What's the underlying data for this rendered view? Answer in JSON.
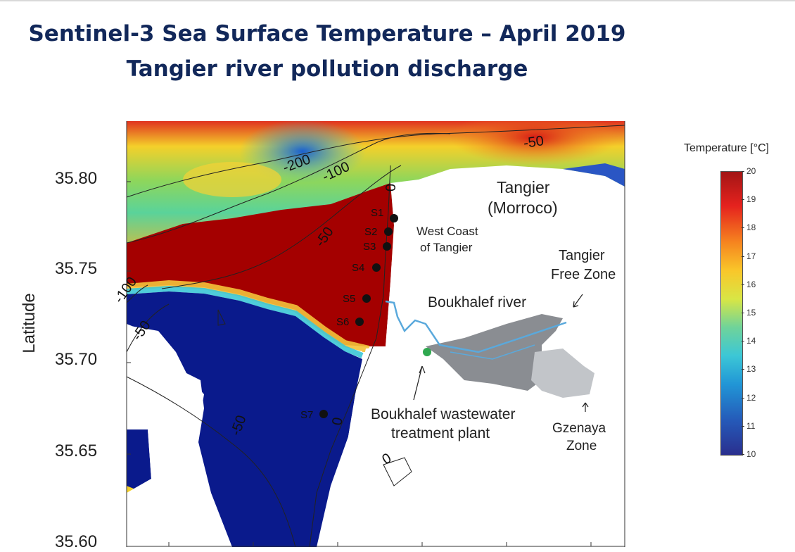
{
  "title": {
    "line1": "Sentinel-3 Sea Surface Temperature – April 2019",
    "line2": "Tangier river pollution discharge"
  },
  "axis": {
    "y_title": "Latitude",
    "y_ticks": [
      "35.80",
      "35.75",
      "35.70",
      "35.65",
      "35.60"
    ]
  },
  "colorbar": {
    "title": "Temperature [°C]",
    "ticks": [
      "20",
      "19",
      "18",
      "17",
      "16",
      "15",
      "14",
      "13",
      "12",
      "11",
      "10"
    ],
    "colors": {
      "low": "#2a2f8e",
      "high": "#a31515"
    }
  },
  "contours": [
    "-200",
    "-100",
    "-50",
    "0",
    "-50",
    "-100",
    "-50",
    "-50",
    "0",
    "0"
  ],
  "stations": [
    "S1",
    "S2",
    "S3",
    "S4",
    "S5",
    "S6",
    "S7"
  ],
  "labels": {
    "city": "Tangier",
    "country": "(Morroco)",
    "west_coast_1": "West Coast",
    "west_coast_2": "of Tangier",
    "free_zone_1": "Tangier",
    "free_zone_2": "Free Zone",
    "river": "Boukhalef river",
    "plant_1": "Boukhalef wastewater",
    "plant_2": "treatment plant",
    "gzenaya_1": "Gzenaya",
    "gzenaya_2": "Zone"
  },
  "colors": {
    "warm_water": "#a40000",
    "cold_water": "#0a1a8c",
    "land": "#ffffff",
    "free_zone": "#8a8d92",
    "gzenaya": "#c2c5c9",
    "river": "#5aa9dc",
    "plant": "#2fa84f"
  }
}
